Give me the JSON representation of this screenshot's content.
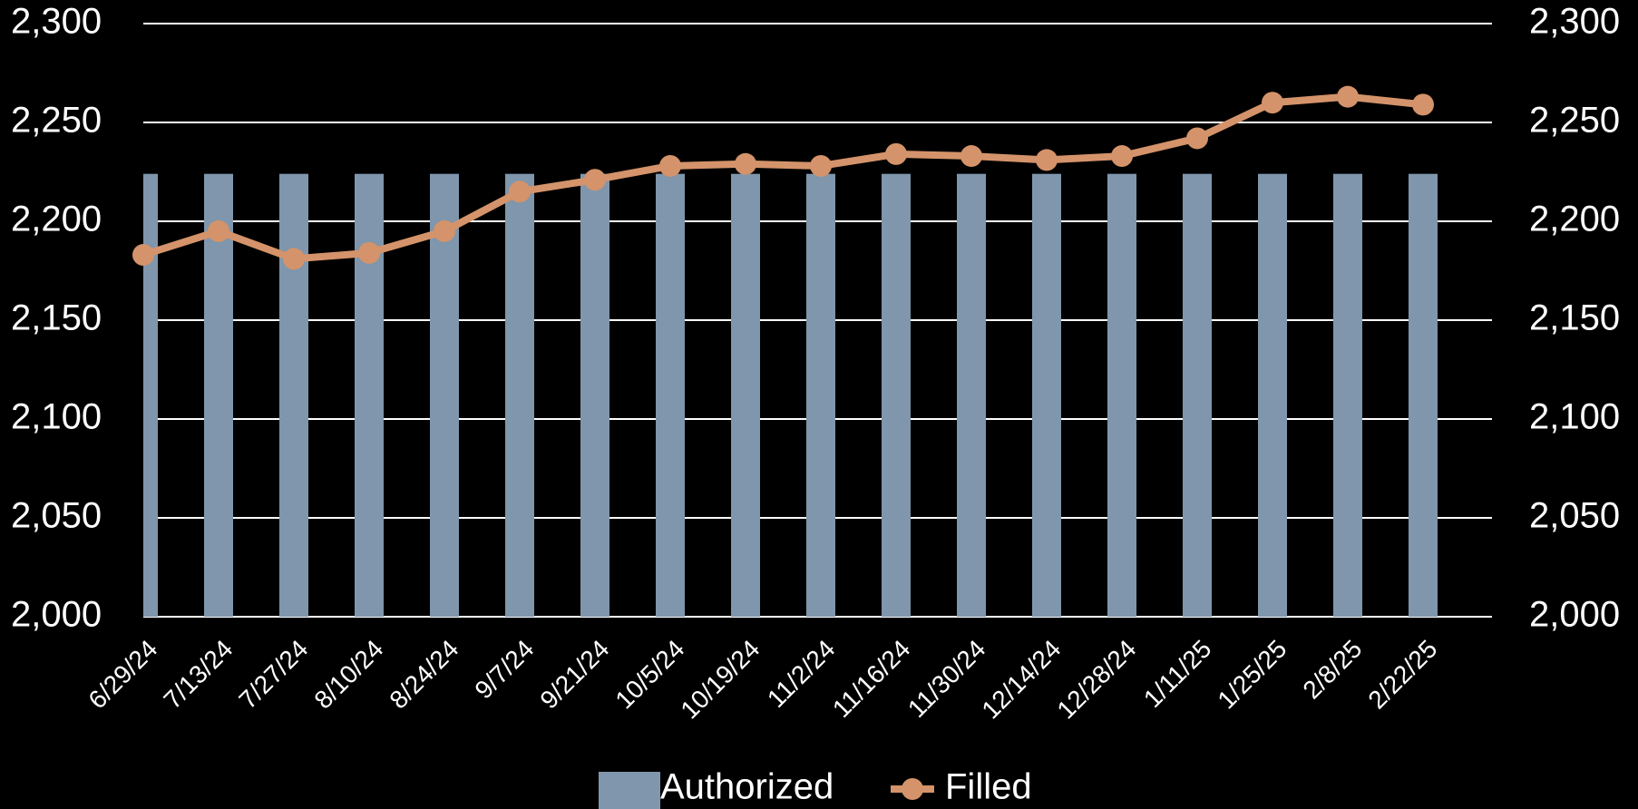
{
  "chart_data": {
    "type": "bar-line",
    "categories": [
      "6/29/24",
      "7/13/24",
      "7/27/24",
      "8/10/24",
      "8/24/24",
      "9/7/24",
      "9/21/24",
      "10/5/24",
      "10/19/24",
      "11/2/24",
      "11/16/24",
      "11/30/24",
      "12/14/24",
      "12/28/24",
      "1/11/25",
      "1/25/25",
      "2/8/25",
      "2/22/25"
    ],
    "series": [
      {
        "name": "Authorized",
        "type": "bar",
        "color": "#7f96ac",
        "values": [
          2224,
          2224,
          2224,
          2224,
          2224,
          2224,
          2224,
          2224,
          2224,
          2224,
          2224,
          2224,
          2224,
          2224,
          2224,
          2224,
          2224,
          2224
        ]
      },
      {
        "name": "Filled",
        "type": "line",
        "axis": "y2",
        "color": "#d4936a",
        "values": [
          2183,
          2195,
          2181,
          2184,
          2195,
          2215,
          2221,
          2228,
          2229,
          2228,
          2234,
          2233,
          2231,
          2233,
          2242,
          2260,
          2263,
          2259
        ]
      }
    ],
    "ylim": [
      2000,
      2300
    ],
    "yticks": [
      {
        "value": 2000,
        "label": "2,000"
      },
      {
        "value": 2050,
        "label": "2,050"
      },
      {
        "value": 2100,
        "label": "2,100"
      },
      {
        "value": 2150,
        "label": "2,150"
      },
      {
        "value": 2200,
        "label": "2,200"
      },
      {
        "value": 2250,
        "label": "2,250"
      },
      {
        "value": 2300,
        "label": "2,300"
      }
    ],
    "y2lim": [
      2000,
      2300
    ],
    "y2ticks": [
      {
        "value": 2000,
        "label": "2,000"
      },
      {
        "value": 2050,
        "label": "2,050"
      },
      {
        "value": 2100,
        "label": "2,100"
      },
      {
        "value": 2150,
        "label": "2,150"
      },
      {
        "value": 2200,
        "label": "2,200"
      },
      {
        "value": 2250,
        "label": "2,250"
      },
      {
        "value": 2300,
        "label": "2,300"
      }
    ],
    "grid": true,
    "legend": "bottom"
  }
}
